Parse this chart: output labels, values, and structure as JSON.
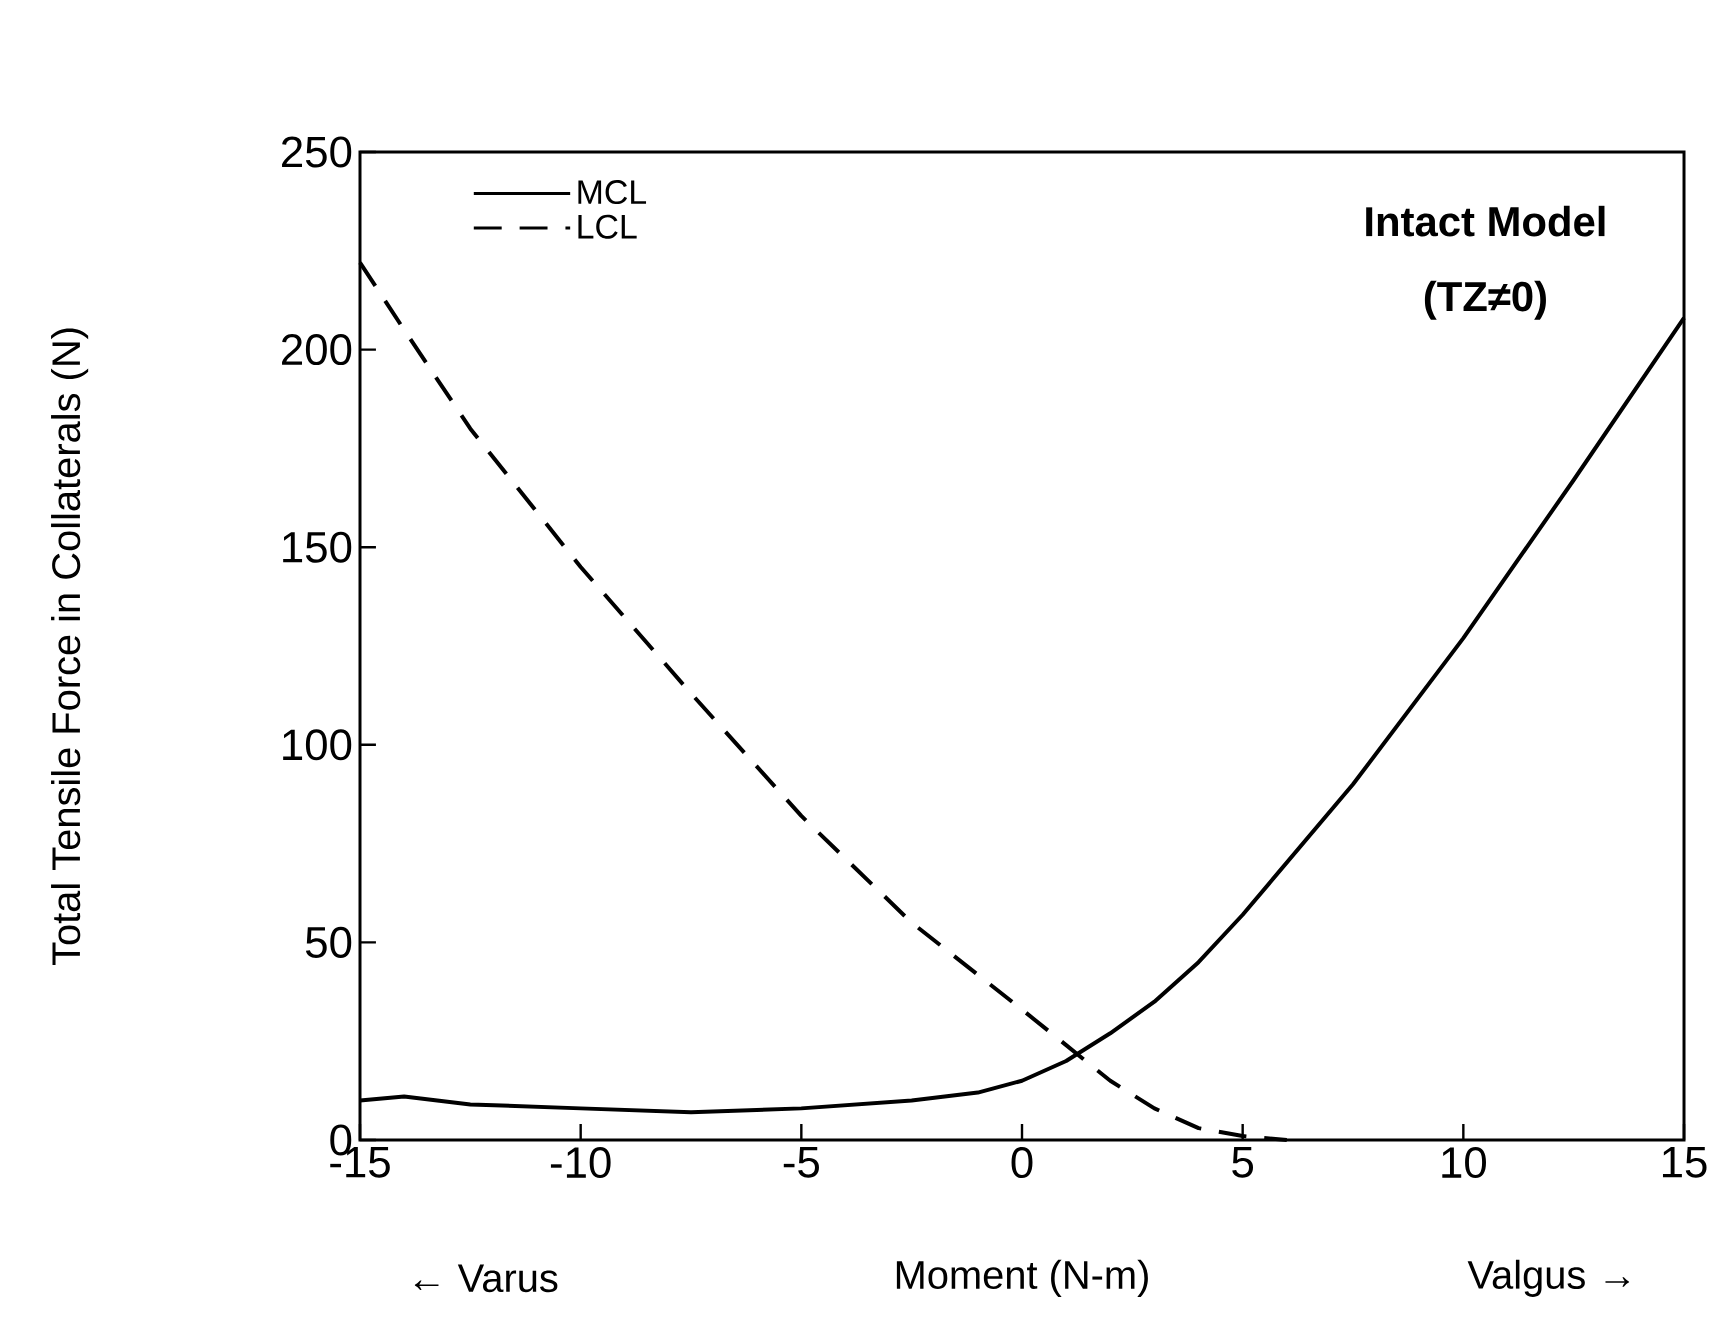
{
  "chart_data": {
    "type": "line",
    "xlabel": "Moment (N-m)",
    "ylabel": "Total Tensile Force in Collaterals (N)",
    "annotations": [
      "Intact Model",
      "(TZ≠0)",
      "← Varus",
      "Valgus →"
    ],
    "xlim": [
      -15,
      15
    ],
    "xticks": [
      -15,
      -10,
      -5,
      0,
      5,
      10,
      15
    ],
    "ylim": [
      0,
      250
    ],
    "yticks": [
      0,
      50,
      100,
      150,
      200,
      250
    ],
    "legend": "top left",
    "grid": false,
    "marker": "none",
    "series": [
      {
        "name": "MCL",
        "color": "#000000",
        "line_style": "solid",
        "x": [
          -15,
          -14,
          -12.5,
          -10,
          -7.5,
          -5,
          -2.5,
          -1,
          0,
          1,
          2,
          3,
          4,
          5,
          7.5,
          10,
          12.5,
          15
        ],
        "values": [
          10,
          11,
          9,
          8,
          7,
          8,
          10,
          12,
          15,
          20,
          27,
          35,
          45,
          57,
          90,
          127,
          167,
          208
        ]
      },
      {
        "name": "LCL",
        "color": "#000000",
        "line_style": "dashed",
        "x": [
          -15,
          -14,
          -12.5,
          -10,
          -7.5,
          -5,
          -2.5,
          0,
          1,
          2,
          3,
          4,
          5,
          6
        ],
        "values": [
          222,
          205,
          180,
          145,
          113,
          82,
          55,
          33,
          24,
          15,
          8,
          3,
          1,
          0
        ]
      }
    ]
  }
}
